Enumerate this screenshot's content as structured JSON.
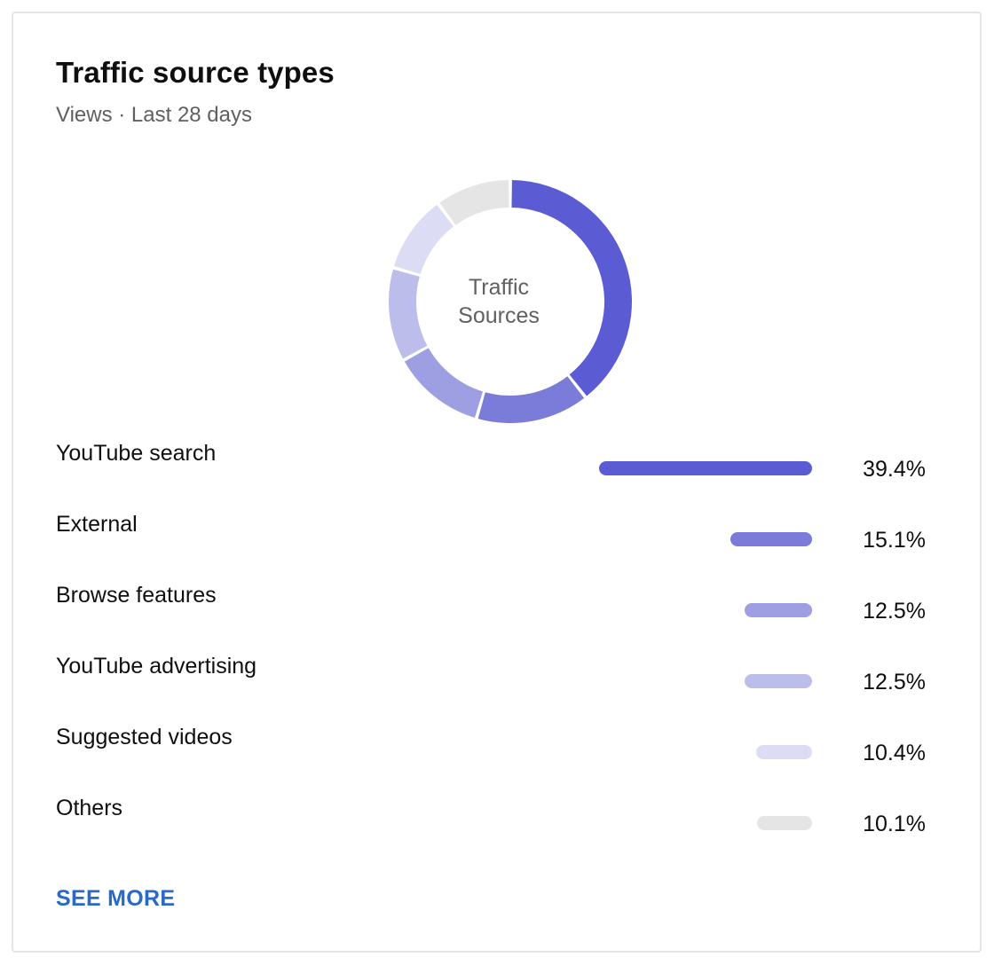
{
  "card": {
    "title": "Traffic source types",
    "subtitle": "Views · Last 28 days",
    "see_more_label": "SEE MORE"
  },
  "chart_data": {
    "type": "pie",
    "center_label_lines": [
      "Traffic",
      "Sources"
    ],
    "series": [
      {
        "name": "YouTube search",
        "value": 39.4,
        "value_label": "39.4%",
        "color": "#5b5bd3"
      },
      {
        "name": "External",
        "value": 15.1,
        "value_label": "15.1%",
        "color": "#7b7bd9"
      },
      {
        "name": "Browse features",
        "value": 12.5,
        "value_label": "12.5%",
        "color": "#9e9ee3"
      },
      {
        "name": "YouTube advertising",
        "value": 12.5,
        "value_label": "12.5%",
        "color": "#bdbdec"
      },
      {
        "name": "Suggested videos",
        "value": 10.4,
        "value_label": "10.4%",
        "color": "#dcdcf5"
      },
      {
        "name": "Others",
        "value": 10.1,
        "value_label": "10.1%",
        "color": "#e5e5e5"
      }
    ]
  }
}
